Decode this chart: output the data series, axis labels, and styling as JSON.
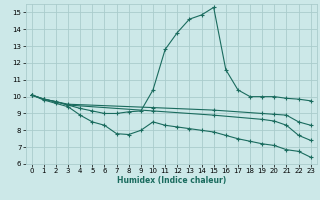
{
  "xlabel": "Humidex (Indice chaleur)",
  "bg_color": "#cce8e8",
  "grid_color": "#aacccc",
  "line_color": "#1a6b5e",
  "xlim": [
    -0.5,
    23.5
  ],
  "ylim": [
    6,
    15.5
  ],
  "xticks": [
    0,
    1,
    2,
    3,
    4,
    5,
    6,
    7,
    8,
    9,
    10,
    11,
    12,
    13,
    14,
    15,
    16,
    17,
    18,
    19,
    20,
    21,
    22,
    23
  ],
  "yticks": [
    6,
    7,
    8,
    9,
    10,
    11,
    12,
    13,
    14,
    15
  ],
  "line1_x": [
    0,
    1,
    2,
    3,
    4,
    5,
    6,
    7,
    8,
    9,
    10,
    11,
    12,
    13,
    14,
    15,
    16,
    17,
    18,
    19,
    20,
    21,
    22,
    23
  ],
  "line1_y": [
    10.1,
    9.85,
    9.7,
    9.5,
    9.3,
    9.15,
    9.0,
    9.0,
    9.1,
    9.15,
    10.4,
    12.8,
    13.8,
    14.6,
    14.85,
    15.3,
    11.6,
    10.4,
    10.0,
    10.0,
    10.0,
    9.9,
    9.85,
    9.75
  ],
  "line2_x": [
    0,
    1,
    2,
    3,
    4,
    5,
    6,
    7,
    8,
    9,
    10,
    11,
    12,
    13,
    14,
    15,
    16,
    17,
    18,
    19,
    20,
    21,
    22,
    23
  ],
  "line2_y": [
    10.1,
    9.8,
    9.6,
    9.4,
    8.9,
    8.5,
    8.3,
    7.8,
    7.75,
    8.0,
    8.5,
    8.3,
    8.2,
    8.1,
    8.0,
    7.9,
    7.7,
    7.5,
    7.35,
    7.2,
    7.1,
    6.85,
    6.75,
    6.4
  ],
  "line3_x": [
    0,
    1,
    2,
    3,
    10,
    15,
    19,
    20,
    21,
    22,
    23
  ],
  "line3_y": [
    10.1,
    9.85,
    9.7,
    9.55,
    9.35,
    9.2,
    9.0,
    8.95,
    8.9,
    8.5,
    8.3
  ],
  "line4_x": [
    0,
    1,
    2,
    3,
    10,
    15,
    19,
    20,
    21,
    22,
    23
  ],
  "line4_y": [
    10.1,
    9.85,
    9.7,
    9.5,
    9.15,
    8.9,
    8.65,
    8.55,
    8.3,
    7.7,
    7.4
  ]
}
